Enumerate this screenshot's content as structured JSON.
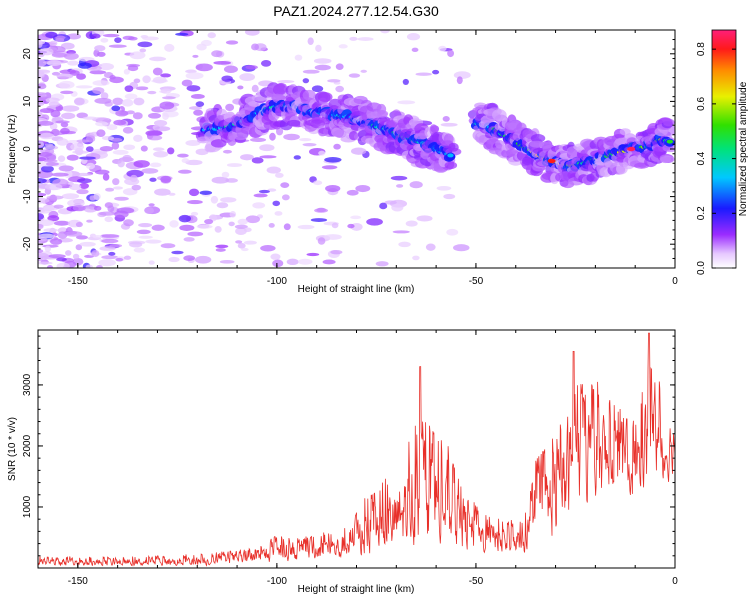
{
  "title": "PAZ1.2024.277.12.54.G30",
  "chart_data": [
    {
      "type": "heatmap",
      "name": "spectrogram",
      "xlabel": "Height of straight line (km)",
      "ylabel": "Frequency (Hz)",
      "xlim": [
        -160,
        0
      ],
      "ylim": [
        -25,
        25
      ],
      "xticks": [
        -150,
        -100,
        -50,
        0
      ],
      "yticks": [
        -20,
        -10,
        0,
        10,
        20
      ],
      "colorbar": {
        "label": "Normalized spectral amplitude",
        "range": [
          0.0,
          0.87
        ],
        "ticks": [
          0.0,
          0.2,
          0.4,
          0.6,
          0.8
        ]
      },
      "ridge": [
        {
          "x": -118,
          "y": 4.0,
          "a": 0.35
        },
        {
          "x": -113,
          "y": 4.5,
          "a": 0.45
        },
        {
          "x": -108,
          "y": 6.0,
          "a": 0.3
        },
        {
          "x": -104,
          "y": 8.0,
          "a": 0.35
        },
        {
          "x": -100,
          "y": 9.0,
          "a": 0.4
        },
        {
          "x": -96,
          "y": 9.0,
          "a": 0.35
        },
        {
          "x": -92,
          "y": 8.0,
          "a": 0.3
        },
        {
          "x": -88,
          "y": 7.5,
          "a": 0.35
        },
        {
          "x": -84,
          "y": 7.0,
          "a": 0.4
        },
        {
          "x": -80,
          "y": 6.5,
          "a": 0.35
        },
        {
          "x": -76,
          "y": 5.0,
          "a": 0.45
        },
        {
          "x": -72,
          "y": 4.0,
          "a": 0.4
        },
        {
          "x": -68,
          "y": 2.5,
          "a": 0.45
        },
        {
          "x": -64,
          "y": 1.5,
          "a": 0.4
        },
        {
          "x": -60,
          "y": 0.0,
          "a": 0.35
        },
        {
          "x": -56,
          "y": -1.5,
          "a": 0.4
        },
        {
          "x": -50,
          "y": 5.5,
          "a": 0.35
        },
        {
          "x": -46,
          "y": 4.5,
          "a": 0.45
        },
        {
          "x": -42,
          "y": 2.5,
          "a": 0.55
        },
        {
          "x": -38,
          "y": 0.5,
          "a": 0.6
        },
        {
          "x": -34,
          "y": -1.5,
          "a": 0.65
        },
        {
          "x": -31,
          "y": -2.5,
          "a": 0.8
        },
        {
          "x": -27,
          "y": -3.5,
          "a": 0.55
        },
        {
          "x": -23,
          "y": -3.0,
          "a": 0.5
        },
        {
          "x": -19,
          "y": -2.0,
          "a": 0.45
        },
        {
          "x": -15,
          "y": -1.0,
          "a": 0.55
        },
        {
          "x": -11,
          "y": 0.0,
          "a": 0.85
        },
        {
          "x": -7,
          "y": 0.5,
          "a": 0.5
        },
        {
          "x": -4,
          "y": 2.0,
          "a": 0.55
        },
        {
          "x": -1,
          "y": 1.5,
          "a": 0.6
        }
      ]
    },
    {
      "type": "line",
      "name": "snr",
      "xlabel": "Height of straight line (km)",
      "ylabel": "SNR (10 * v/v)",
      "xlim": [
        -160,
        0
      ],
      "ylim": [
        0,
        3900
      ],
      "xticks": [
        -150,
        -100,
        -50,
        0
      ],
      "yticks": [
        1000,
        2000,
        3000
      ],
      "color": "#e8302a",
      "envelope": [
        {
          "x": -160,
          "lo": 20,
          "hi": 200
        },
        {
          "x": -140,
          "lo": 20,
          "hi": 180
        },
        {
          "x": -120,
          "lo": 20,
          "hi": 230
        },
        {
          "x": -105,
          "lo": 30,
          "hi": 330
        },
        {
          "x": -100,
          "lo": 50,
          "hi": 550
        },
        {
          "x": -95,
          "lo": 80,
          "hi": 500
        },
        {
          "x": -90,
          "lo": 80,
          "hi": 580
        },
        {
          "x": -84,
          "lo": 80,
          "hi": 650
        },
        {
          "x": -80,
          "lo": 100,
          "hi": 1000
        },
        {
          "x": -75,
          "lo": 100,
          "hi": 1350
        },
        {
          "x": -70,
          "lo": 150,
          "hi": 1600
        },
        {
          "x": -65,
          "lo": 150,
          "hi": 2500
        },
        {
          "x": -60,
          "lo": 150,
          "hi": 2300
        },
        {
          "x": -56,
          "lo": 150,
          "hi": 1900
        },
        {
          "x": -52,
          "lo": 150,
          "hi": 1200
        },
        {
          "x": -48,
          "lo": 150,
          "hi": 900
        },
        {
          "x": -42,
          "lo": 150,
          "hi": 800
        },
        {
          "x": -38,
          "lo": 150,
          "hi": 750
        },
        {
          "x": -35,
          "lo": 200,
          "hi": 1800
        },
        {
          "x": -30,
          "lo": 300,
          "hi": 2200
        },
        {
          "x": -25,
          "lo": 600,
          "hi": 3200
        },
        {
          "x": -20,
          "lo": 900,
          "hi": 3100
        },
        {
          "x": -15,
          "lo": 800,
          "hi": 2700
        },
        {
          "x": -10,
          "lo": 1000,
          "hi": 2500
        },
        {
          "x": -6,
          "lo": 1100,
          "hi": 3500
        },
        {
          "x": -3,
          "lo": 1200,
          "hi": 2900
        },
        {
          "x": 0,
          "lo": 1500,
          "hi": 2700
        }
      ],
      "peaks": [
        {
          "x": -64,
          "y": 3300
        },
        {
          "x": -25.5,
          "y": 3550
        },
        {
          "x": -6.5,
          "y": 3850
        }
      ]
    }
  ]
}
